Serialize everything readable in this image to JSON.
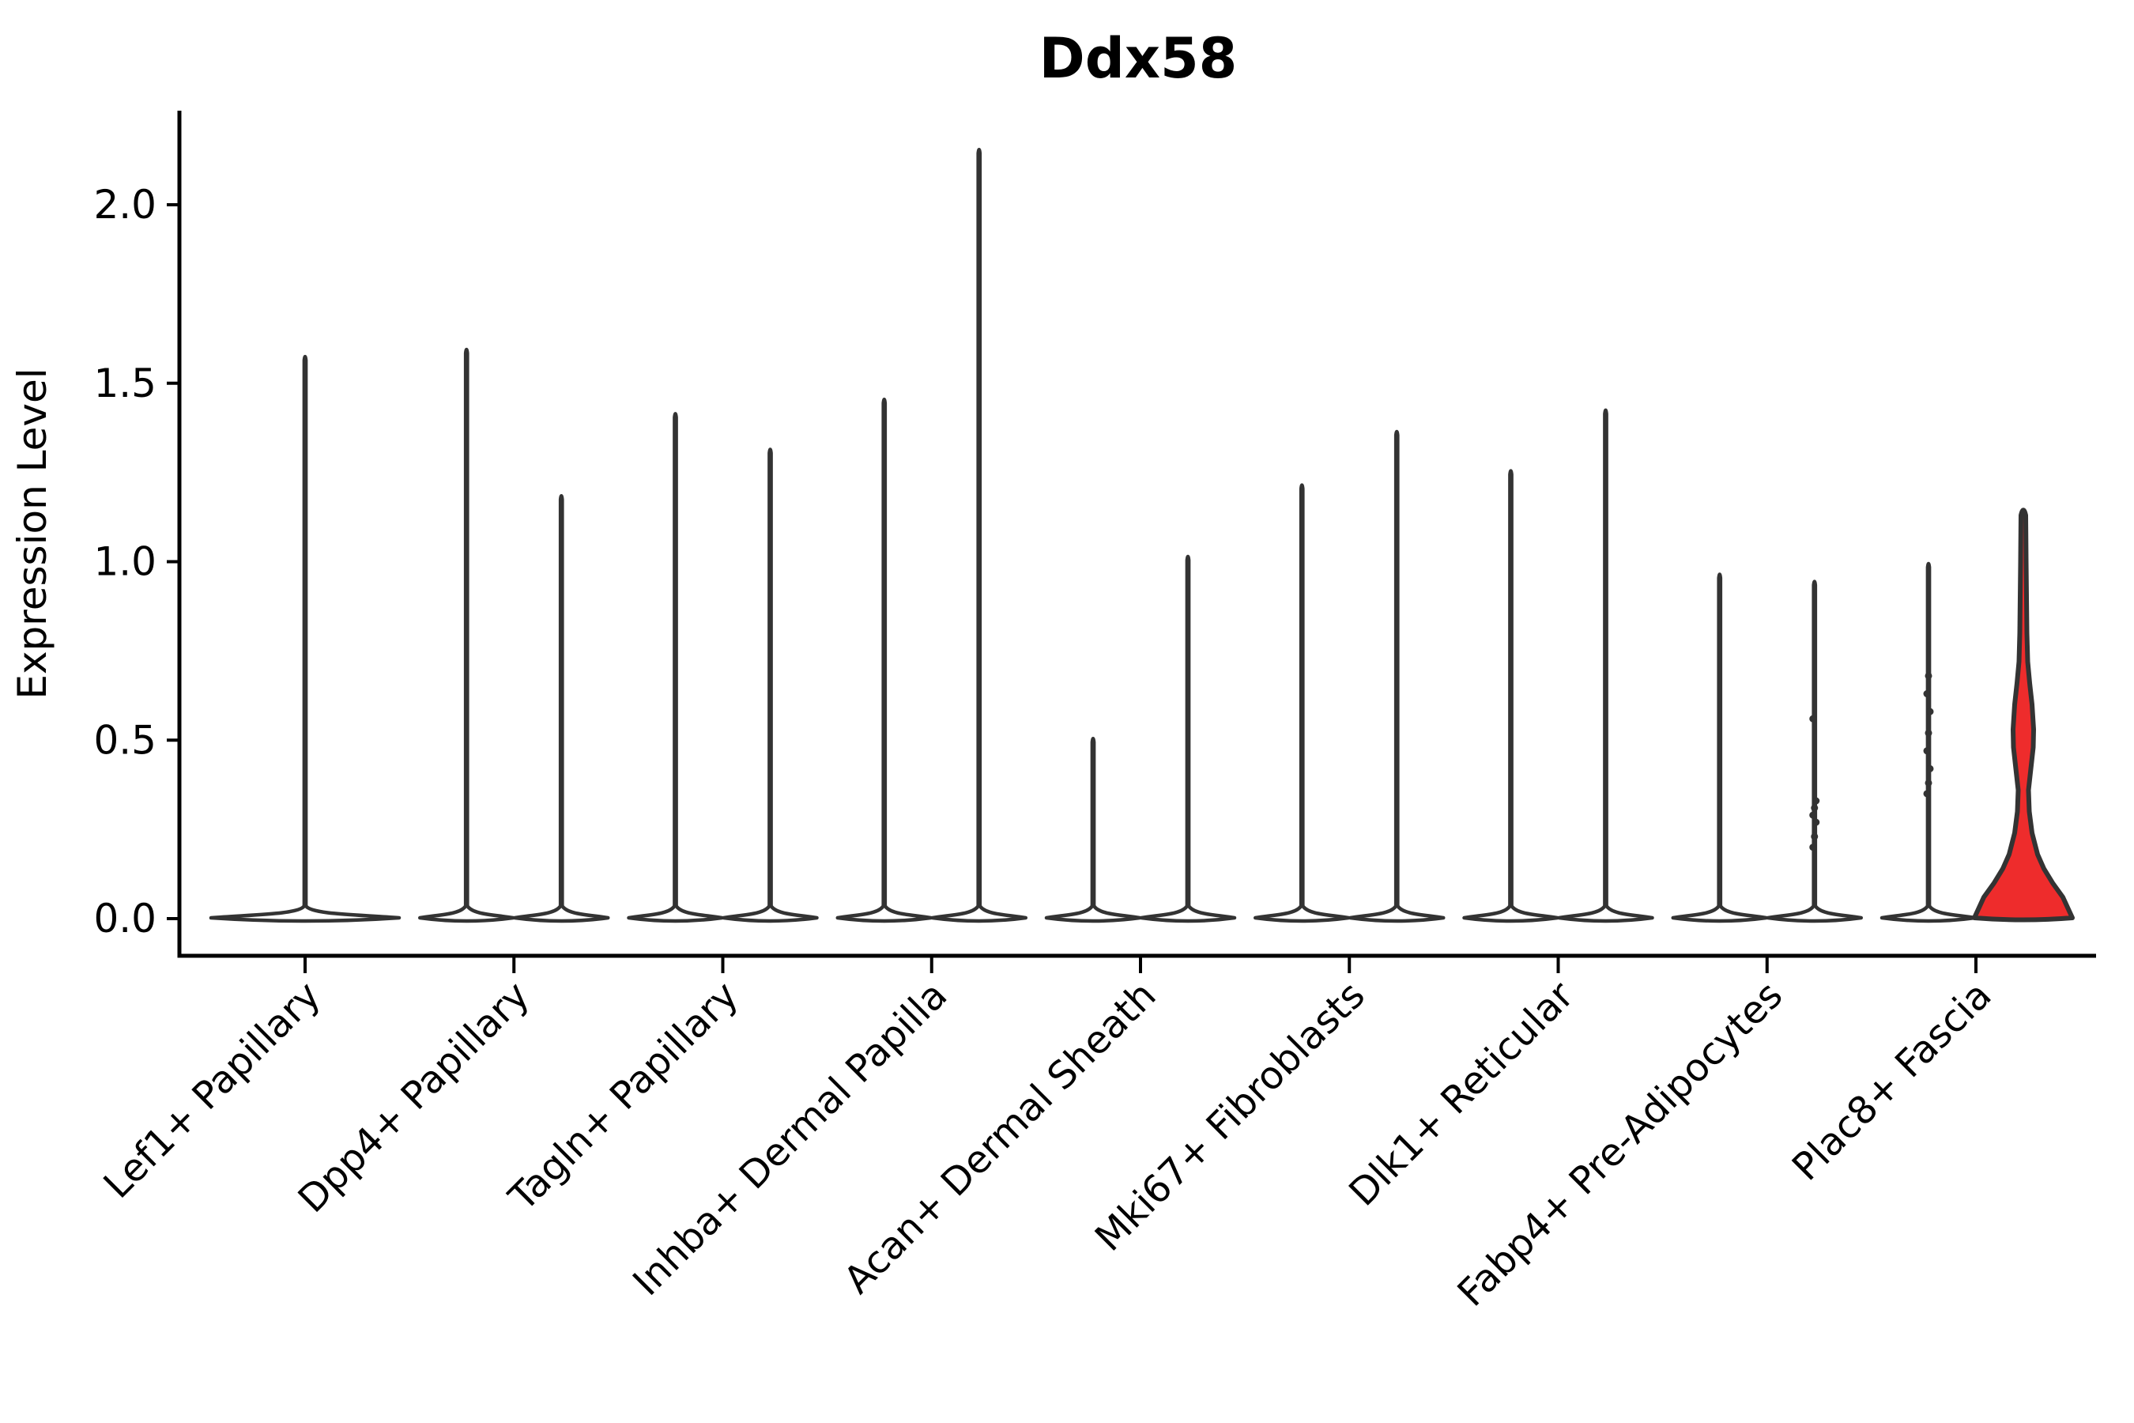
{
  "chart_data": {
    "type": "violin",
    "title": "Ddx58",
    "ylabel": "Expression Level",
    "xlabel": "",
    "grid": false,
    "legend": "none",
    "background_color": "#ffffff",
    "outline_color": "#333333",
    "axis_color": "#000000",
    "highlight_fill_color": "#ee2c2c",
    "default_fill_color": "#ffffff",
    "ylim": [
      -0.1,
      2.26
    ],
    "y_ticks": [
      {
        "label": "2.0",
        "value": 2.0
      },
      {
        "label": "1.5",
        "value": 1.5
      },
      {
        "label": "1.0",
        "value": 1.0
      },
      {
        "label": "0.5",
        "value": 0.5
      },
      {
        "label": "0.0",
        "value": 0.0
      }
    ],
    "categories": [
      {
        "label": "Lef1+ Papillary",
        "violins": [
          {
            "offset": 0,
            "base_half_width": 119,
            "max": 1.58
          }
        ]
      },
      {
        "label": "Dpp4+ Papillary",
        "violins": [
          {
            "offset": -60,
            "base_half_width": 59,
            "max": 1.6
          },
          {
            "offset": 60,
            "base_half_width": 59,
            "max": 1.19
          }
        ]
      },
      {
        "label": "Tagln+ Papillary",
        "violins": [
          {
            "offset": -60,
            "base_half_width": 59,
            "max": 1.42
          },
          {
            "offset": 60,
            "base_half_width": 59,
            "max": 1.32
          }
        ]
      },
      {
        "label": "Inhba+ Dermal Papilla",
        "violins": [
          {
            "offset": -60,
            "base_half_width": 59,
            "max": 1.46
          },
          {
            "offset": 60,
            "base_half_width": 59,
            "max": 2.16
          }
        ]
      },
      {
        "label": "Acan+ Dermal Sheath",
        "violins": [
          {
            "offset": -60,
            "base_half_width": 59,
            "max": 0.51
          },
          {
            "offset": 60,
            "base_half_width": 59,
            "max": 1.02
          }
        ]
      },
      {
        "label": "Mki67+ Fibroblasts",
        "violins": [
          {
            "offset": -60,
            "base_half_width": 59,
            "max": 1.22
          },
          {
            "offset": 60,
            "base_half_width": 59,
            "max": 1.37
          }
        ]
      },
      {
        "label": "Dlk1+ Reticular",
        "violins": [
          {
            "offset": -60,
            "base_half_width": 59,
            "max": 1.26
          },
          {
            "offset": 60,
            "base_half_width": 59,
            "max": 1.43
          }
        ]
      },
      {
        "label": "Fabp4+ Pre-Adipocytes",
        "violins": [
          {
            "offset": -60,
            "base_half_width": 59,
            "max": 0.97
          },
          {
            "offset": 60,
            "base_half_width": 59,
            "max": 0.95,
            "dots": [
              0.2,
              0.23,
              0.27,
              0.29,
              0.31,
              0.33,
              0.56
            ]
          }
        ]
      },
      {
        "label": "Plac8+ Fascia",
        "violins": [
          {
            "offset": -60,
            "base_half_width": 59,
            "max": 1.0,
            "dots": [
              0.35,
              0.38,
              0.42,
              0.47,
              0.52,
              0.58,
              0.63,
              0.68
            ]
          },
          {
            "offset": 60,
            "base_half_width": 62,
            "max": 1.15,
            "highlight": true,
            "profile": [
              [
                0.02,
                62
              ],
              [
                0.06,
                50
              ],
              [
                0.1,
                37
              ],
              [
                0.14,
                26
              ],
              [
                0.18,
                18
              ],
              [
                0.24,
                11
              ],
              [
                0.3,
                7.5
              ],
              [
                0.36,
                6.5
              ],
              [
                0.42,
                9.5
              ],
              [
                0.48,
                12.5
              ],
              [
                0.53,
                13
              ],
              [
                0.6,
                11
              ],
              [
                0.66,
                8
              ],
              [
                0.72,
                5.5
              ],
              [
                0.8,
                4.5
              ],
              [
                0.9,
                4
              ],
              [
                1.0,
                3.5
              ],
              [
                1.08,
                3.2
              ],
              [
                1.13,
                3
              ]
            ]
          }
        ]
      }
    ]
  }
}
